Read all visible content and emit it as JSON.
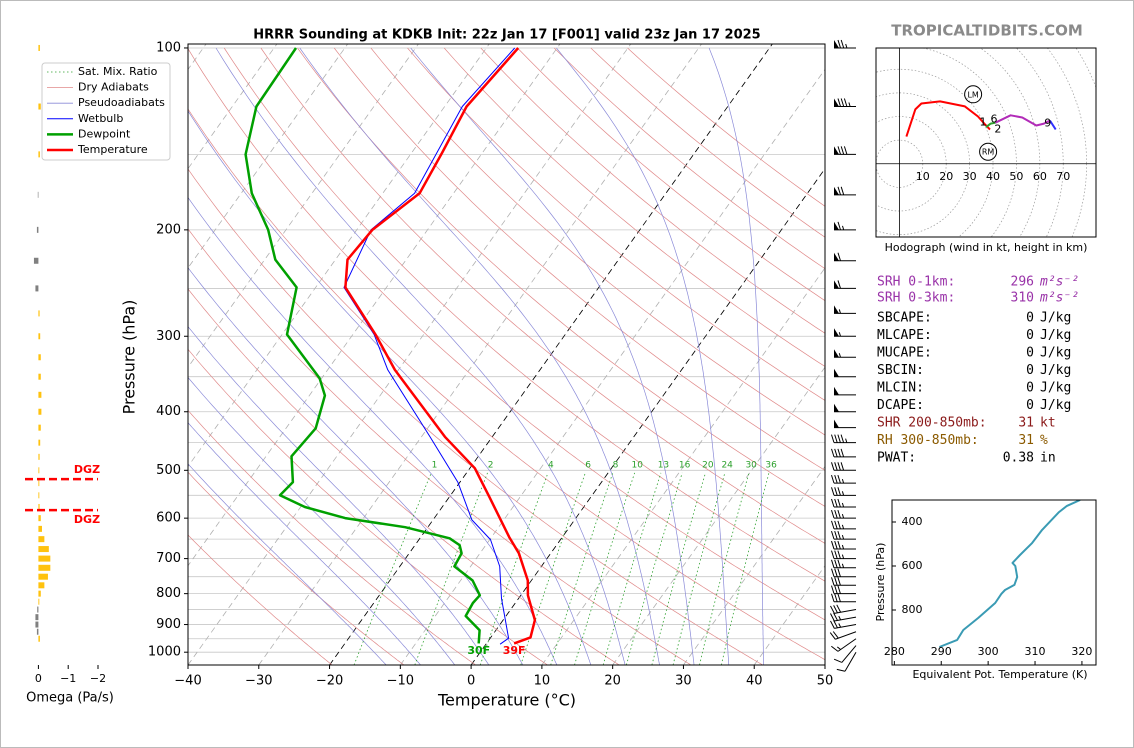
{
  "watermark": "TROPICALTIDBITS.COM",
  "stats": [
    {
      "label": "SRH 0-1km:",
      "value": 296,
      "unit": "m²s⁻²",
      "color": "#9932a8"
    },
    {
      "label": "SRH 0-3km:",
      "value": 310,
      "unit": "m²s⁻²",
      "color": "#9932a8"
    },
    {
      "label": "SBCAPE:",
      "value": 0,
      "unit": "J/kg",
      "color": "#000000"
    },
    {
      "label": "MLCAPE:",
      "value": 0,
      "unit": "J/kg",
      "color": "#000000"
    },
    {
      "label": "MUCAPE:",
      "value": 0,
      "unit": "J/kg",
      "color": "#000000"
    },
    {
      "label": "SBCIN:",
      "value": 0,
      "unit": "J/kg",
      "color": "#000000"
    },
    {
      "label": "MLCIN:",
      "value": 0,
      "unit": "J/kg",
      "color": "#000000"
    },
    {
      "label": "DCAPE:",
      "value": 0,
      "unit": "J/kg",
      "color": "#000000"
    },
    {
      "label": "SHR 200-850mb:",
      "value": 31,
      "unit": "kt",
      "color": "#8b1a1a"
    },
    {
      "label": "RH 300-850mb:",
      "value": 31,
      "unit": "%",
      "color": "#8b5a00"
    },
    {
      "label": "PWAT:",
      "value": 0.38,
      "unit": "in",
      "color": "#000000"
    }
  ],
  "chart_data": [
    {
      "type": "skewt",
      "title": "HRRR Sounding at KDKB Init: 22z Jan 17 [F001] valid 23z Jan 17 2025",
      "xlabel": "Temperature (°C)",
      "ylabel": "Pressure (hPa)",
      "xlim": [
        -40,
        50
      ],
      "ylim": [
        1050,
        98.5
      ],
      "log_y": true,
      "xticks": [
        {
          "value": -40,
          "label": "−40"
        },
        {
          "value": -30,
          "label": "−30"
        },
        {
          "value": -20,
          "label": "−20"
        },
        {
          "value": -10,
          "label": "−10"
        },
        0,
        10,
        20,
        30,
        40,
        50
      ],
      "yticks": [
        100,
        200,
        300,
        400,
        500,
        600,
        700,
        800,
        900,
        1000
      ],
      "ygrid_minor": [
        150,
        250,
        350,
        450,
        550,
        650,
        750,
        850,
        950
      ],
      "isotherms": [
        -100,
        -90,
        -80,
        -70,
        -60,
        -50,
        -40,
        -30,
        -20,
        -10,
        0,
        10,
        20,
        30,
        40,
        50
      ],
      "dashed_isotherms": [
        -20,
        0
      ],
      "mixing_ratio": {
        "name": "Sat. Mix. Ratio",
        "color": "#2ca02c",
        "values": [
          1,
          2,
          4,
          6,
          8,
          10,
          13,
          16,
          20,
          24,
          30,
          36
        ]
      },
      "dry_adiabats": {
        "name": "Dry Adiabats",
        "color": "#e08a8a",
        "values": [
          250,
          260,
          270,
          280,
          290,
          300,
          310,
          320,
          330,
          340,
          350,
          360,
          370,
          380,
          390,
          400,
          410,
          420,
          430,
          440,
          450
        ]
      },
      "pseudoadiabats": {
        "name": "Pseudoadiabats",
        "color": "#8a8ad8",
        "values": [
          -15,
          -10,
          -5,
          0,
          5,
          10,
          15,
          20,
          25,
          30,
          35,
          40
        ]
      },
      "legend": "upper left",
      "series": [
        {
          "name": "Wetbulb",
          "color": "#0000ff",
          "pressure": [
            970,
            948,
            815,
            721,
            651,
            604,
            523,
            440,
            341,
            298,
            249,
            200,
            174,
            125,
            100
          ],
          "values": [
            2.0,
            2.6,
            -2.4,
            -5.9,
            -9.9,
            -14.5,
            -20.3,
            -28.8,
            -41.5,
            -47,
            -56,
            -58,
            -55.5,
            -57.5,
            -56
          ]
        },
        {
          "name": "Dewpoint",
          "color": "#00a000",
          "surface_label": "30F",
          "pressure": [
            967,
            920,
            871,
            829,
            805,
            761,
            721,
            686,
            665,
            648,
            621,
            600,
            575,
            550,
            523,
            474,
            426,
            376,
            352,
            298,
            249,
            224,
            200,
            174,
            150,
            125,
            100
          ],
          "values": [
            -1.1,
            -2.3,
            -5.7,
            -6,
            -5.8,
            -8.3,
            -12.3,
            -12.6,
            -13.7,
            -15.8,
            -23.2,
            -32.6,
            -39.4,
            -44.1,
            -43.6,
            -46.4,
            -45.8,
            -47.8,
            -50.3,
            -59.3,
            -62.7,
            -68.5,
            -72.5,
            -78.5,
            -83.3,
            -86.6,
            -86.9
          ]
        },
        {
          "name": "Temperature",
          "color": "#ff0000",
          "surface_label": "39F",
          "pressure": [
            967,
            945,
            885,
            805,
            761,
            686,
            645,
            554,
            496,
            440,
            341,
            298,
            249,
            224,
            200,
            174,
            149,
            125,
            100
          ],
          "values": [
            3.9,
            5.6,
            4.5,
            1.0,
            -0.5,
            -4.5,
            -7.5,
            -14.3,
            -19.3,
            -26.7,
            -40.5,
            -46.8,
            -55.8,
            -58.3,
            -57.8,
            -54.8,
            -55.7,
            -56.9,
            -55.5
          ]
        }
      ],
      "wind": {
        "pressure": [
          100,
          125,
          150,
          175,
          200,
          225,
          250,
          275,
          300,
          325,
          350,
          375,
          400,
          425,
          450,
          475,
          500,
          525,
          550,
          575,
          600,
          625,
          650,
          675,
          700,
          725,
          750,
          775,
          800,
          825,
          850,
          875,
          900,
          925,
          950,
          975,
          1000
        ],
        "speed": [
          75,
          85,
          80,
          70,
          65,
          60,
          60,
          55,
          55,
          55,
          50,
          50,
          50,
          50,
          45,
          40,
          40,
          35,
          35,
          35,
          35,
          35,
          35,
          35,
          35,
          35,
          30,
          30,
          30,
          30,
          30,
          25,
          25,
          20,
          15,
          10,
          10
        ],
        "direction": [
          270,
          270,
          270,
          270,
          270,
          270,
          270,
          270,
          270,
          270,
          270,
          270,
          270,
          270,
          270,
          270,
          270,
          270,
          270,
          270,
          270,
          270,
          270,
          270,
          270,
          270,
          270,
          270,
          270,
          270,
          260,
          260,
          260,
          250,
          235,
          220,
          210
        ]
      }
    },
    {
      "type": "hbar",
      "xlabel": "Omega (Pa/s)",
      "xlim": [
        0.45,
        -2
      ],
      "ylim": [
        1050,
        98.5
      ],
      "log_y": true,
      "xticks": [
        0,
        {
          "value": -1,
          "label": "−1"
        },
        {
          "value": -2,
          "label": "−2"
        }
      ],
      "color": "#ffc20e",
      "color_positive": "#808080",
      "pressure": [
        100,
        125,
        150,
        175,
        200,
        225,
        250,
        275,
        300,
        325,
        350,
        375,
        400,
        425,
        450,
        475,
        500,
        525,
        550,
        575,
        600,
        625,
        650,
        675,
        700,
        725,
        750,
        775,
        800,
        825,
        850,
        875,
        900,
        925,
        950,
        975,
        1000
      ],
      "values": [
        -0.05,
        -0.08,
        -0.05,
        0.02,
        0.05,
        0.15,
        0.1,
        -0.04,
        -0.06,
        -0.08,
        -0.08,
        -0.1,
        -0.1,
        -0.08,
        -0.06,
        -0.04,
        -0.03,
        -0.03,
        -0.03,
        -0.04,
        -0.08,
        -0.12,
        -0.2,
        -0.35,
        -0.4,
        -0.4,
        -0.32,
        -0.2,
        -0.08,
        -0.03,
        0.04,
        0.1,
        0.1,
        0.05,
        -0.05,
        0,
        0
      ],
      "dgz": {
        "pressure": [
          517,
          582
        ],
        "labels": [
          "DGZ",
          "DGZ"
        ],
        "color": "#ff0000"
      }
    },
    {
      "type": "hodograph",
      "caption": "Hodograph (wind in kt, height in km)",
      "xlim": [
        -10,
        84
      ],
      "ylim": [
        -31,
        49
      ],
      "xticks": [
        10,
        20,
        30,
        40,
        50,
        60,
        70
      ],
      "rings": [
        10,
        20,
        30,
        40,
        50,
        60,
        70,
        80,
        90,
        100,
        110,
        120
      ],
      "series": [
        {
          "color": "#ff0000",
          "u": [
            3,
            6.8,
            9.4,
            17.4,
            28,
            33.6,
            36.6,
            38.7
          ],
          "v": [
            11.5,
            23,
            25.5,
            26.4,
            24.3,
            20,
            16.6,
            14.5
          ]
        },
        {
          "color": "#2ca02c",
          "u": [
            37,
            39,
            41
          ],
          "v": [
            15.5,
            17,
            17.4
          ]
        },
        {
          "color": "#b22bb8",
          "u": [
            41,
            47.5,
            52.5,
            58.5,
            61.8,
            64.3
          ],
          "v": [
            17.4,
            20.5,
            19.6,
            16.2,
            17,
            18.3
          ]
        },
        {
          "color": "#3030ff",
          "u": [
            64.3,
            66.8
          ],
          "v": [
            18.3,
            14.5
          ]
        }
      ],
      "height_labels": {
        "labels": [
          "1",
          "6",
          "2",
          "9"
        ],
        "u": [
          35.7,
          40.4,
          42.1,
          63.4
        ],
        "v": [
          17.4,
          18.7,
          14.5,
          17
        ]
      },
      "storm_motion": {
        "labels": [
          "LM",
          "RM"
        ],
        "u": [
          31.5,
          37.9
        ],
        "v": [
          29.4,
          5.1
        ]
      }
    },
    {
      "type": "line",
      "xlabel": "Equivalent Pot. Temperature (K)",
      "ylabel": "Pressure (hPa)",
      "xlim": [
        279.5,
        323
      ],
      "ylim": [
        1050,
        300
      ],
      "xticks": [
        280,
        290,
        300,
        310,
        320
      ],
      "yticks": [
        400,
        600,
        800
      ],
      "series": [
        {
          "color": "#3a9bb4",
          "pressure": [
            968,
            936,
            891,
            836,
            768,
            727,
            709,
            686,
            650,
            600,
            586,
            550,
            495,
            436,
            355,
            327,
            300
          ],
          "values": [
            289.6,
            293.4,
            294.7,
            297.9,
            301.5,
            302.8,
            303.6,
            305.6,
            306.2,
            305.8,
            305.2,
            306.8,
            309.4,
            311.5,
            315.1,
            316.8,
            319.6
          ]
        }
      ]
    }
  ]
}
